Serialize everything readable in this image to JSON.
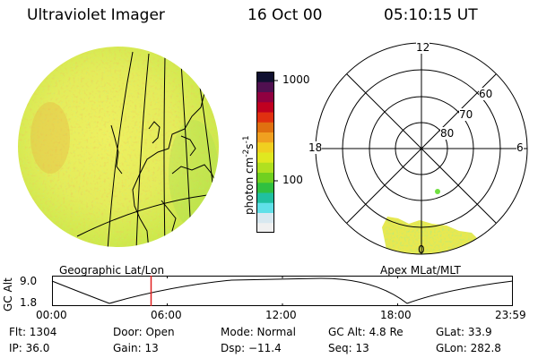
{
  "header": {
    "instrument": "Ultraviolet Imager",
    "date": "16 Oct 00",
    "time": "05:10:15 UT"
  },
  "colorbar": {
    "unit_label": "photon cm",
    "unit_exp1": "-2",
    "unit_mid": "s",
    "unit_exp2": "-1",
    "ticks": [
      "1000",
      "100"
    ],
    "colors": [
      "#f0f0f0",
      "#d8e8f0",
      "#60e0e8",
      "#20c0a0",
      "#30c040",
      "#70d020",
      "#b0e020",
      "#e0e820",
      "#f0d020",
      "#f0a020",
      "#e07010",
      "#e03010",
      "#c00020",
      "#900040",
      "#501050",
      "#101030"
    ]
  },
  "polar": {
    "mlt_labels": {
      "top": "12",
      "left": "18",
      "right": "6",
      "bottom": "0"
    },
    "mlat_labels": [
      "60",
      "70",
      "80"
    ]
  },
  "timeline": {
    "left_label": "Geographic Lat/Lon",
    "right_label": "Apex MLat/MLT",
    "axis_title": "GC Alt",
    "y_max": "9.0",
    "y_min": "1.8",
    "time_ticks": [
      "00:00",
      "06:00",
      "12:00",
      "18:00",
      "23:59"
    ],
    "current_time_fraction": 0.215
  },
  "info": {
    "flt": "Flt: 1304",
    "ip": "IP: 36.0",
    "door": "Door: Open",
    "gain": "Gain: 13",
    "mode": "Mode: Normal",
    "dsp": "Dsp:  −11.4",
    "gc_alt": "GC Alt: 4.8 Re",
    "seq": "Seq: 13",
    "glat": "GLat:  33.9",
    "glon": "GLon: 282.8"
  },
  "colors": {
    "globe_base": "#e4ec5a",
    "auroral": "#e8e850",
    "marker": "#e02020"
  }
}
